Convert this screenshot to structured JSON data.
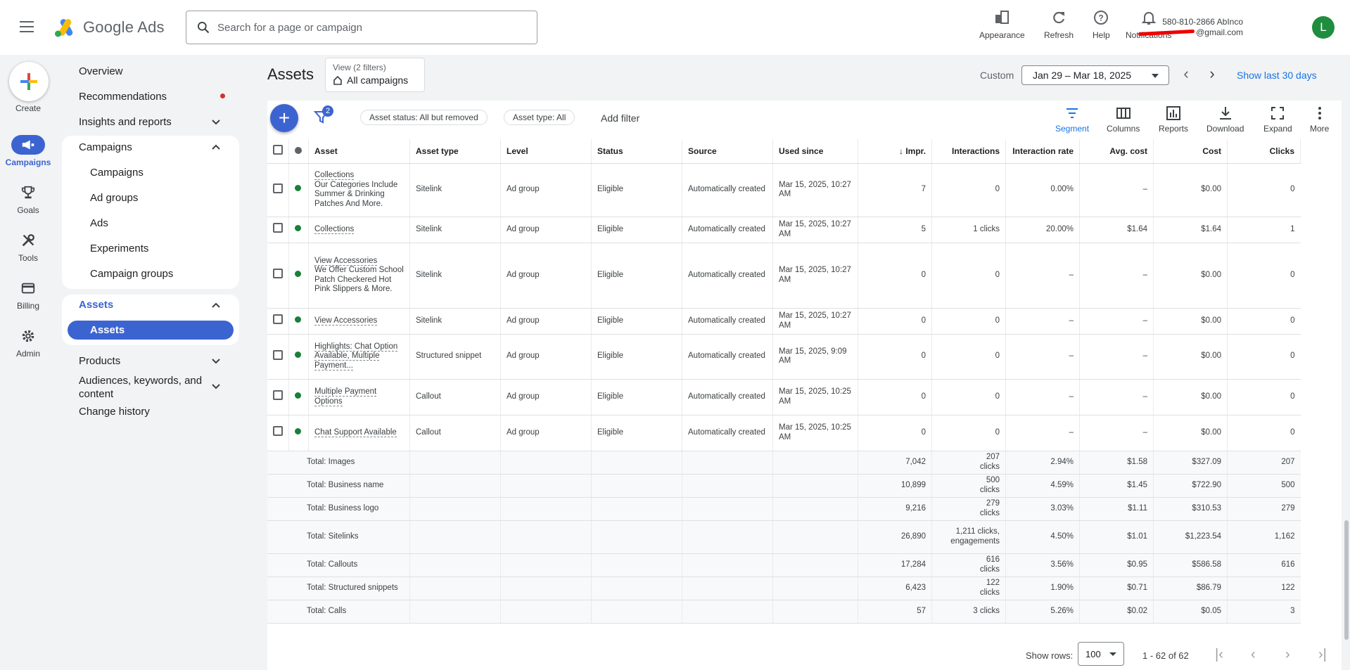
{
  "header": {
    "app_name": "Google Ads",
    "search_placeholder": "Search for a page or campaign",
    "tools": {
      "appearance": "Appearance",
      "refresh": "Refresh",
      "help": "Help",
      "notifications": "Notifications"
    },
    "account": {
      "line1": "580-810-2866 AbInco",
      "email_suffix": "@gmail.com",
      "avatar_letter": "L"
    }
  },
  "rail": {
    "create": "Create",
    "campaigns": "Campaigns",
    "goals": "Goals",
    "tools": "Tools",
    "billing": "Billing",
    "admin": "Admin"
  },
  "nav": {
    "overview": "Overview",
    "recommendations": "Recommendations",
    "insights": "Insights and reports",
    "campaigns_header": "Campaigns",
    "campaigns_sub": [
      "Campaigns",
      "Ad groups",
      "Ads",
      "Experiments",
      "Campaign groups"
    ],
    "assets_header": "Assets",
    "assets_sub": "Assets",
    "products": "Products",
    "audiences": "Audiences, keywords, and content",
    "change_history": "Change history"
  },
  "main": {
    "title": "Assets",
    "view_filters": "View (2 filters)",
    "view_scope": "All campaigns",
    "date_label": "Custom",
    "date_range": "Jan 29 – Mar 18, 2025",
    "show_last": "Show last 30 days",
    "filter_count": "2",
    "chips": [
      "Asset status: All but removed",
      "Asset type: All"
    ],
    "add_filter": "Add filter",
    "toolbar": {
      "segment": "Segment",
      "columns": "Columns",
      "reports": "Reports",
      "download": "Download",
      "expand": "Expand",
      "more": "More"
    }
  },
  "table": {
    "columns": [
      "Asset",
      "Asset type",
      "Level",
      "Status",
      "Source",
      "Used since",
      "Impr.",
      "Interactions",
      "Interaction rate",
      "Avg. cost",
      "Cost",
      "Clicks"
    ],
    "rows": [
      {
        "asset_title": "Collections",
        "asset_desc": "Our Categories Include Summer & Drinking Patches And More.",
        "type": "Sitelink",
        "level": "Ad group",
        "status": "Eligible",
        "source": "Automatically created",
        "used": "Mar 15, 2025, 10:27 AM",
        "impr": "7",
        "inter": "0",
        "rate": "0.00%",
        "avg": "–",
        "cost": "$0.00",
        "clicks": "0"
      },
      {
        "asset_title": "Collections",
        "asset_desc": "",
        "type": "Sitelink",
        "level": "Ad group",
        "status": "Eligible",
        "source": "Automatically created",
        "used": "Mar 15, 2025, 10:27 AM",
        "impr": "5",
        "inter": "1 clicks",
        "rate": "20.00%",
        "avg": "$1.64",
        "cost": "$1.64",
        "clicks": "1"
      },
      {
        "asset_title": "View Accessories",
        "asset_desc": "We Offer Custom School Patch Checkered Hot Pink Slippers & More.",
        "type": "Sitelink",
        "level": "Ad group",
        "status": "Eligible",
        "source": "Automatically created",
        "used": "Mar 15, 2025, 10:27 AM",
        "impr": "0",
        "inter": "0",
        "rate": "–",
        "avg": "–",
        "cost": "$0.00",
        "clicks": "0"
      },
      {
        "asset_title": "View Accessories",
        "asset_desc": "",
        "type": "Sitelink",
        "level": "Ad group",
        "status": "Eligible",
        "source": "Automatically created",
        "used": "Mar 15, 2025, 10:27 AM",
        "impr": "0",
        "inter": "0",
        "rate": "–",
        "avg": "–",
        "cost": "$0.00",
        "clicks": "0"
      },
      {
        "asset_title": "Highlights: Chat Option Available, Multiple Payment...",
        "asset_desc": "",
        "type": "Structured snippet",
        "level": "Ad group",
        "status": "Eligible",
        "source": "Automatically created",
        "used": "Mar 15, 2025, 9:09 AM",
        "impr": "0",
        "inter": "0",
        "rate": "–",
        "avg": "–",
        "cost": "$0.00",
        "clicks": "0"
      },
      {
        "asset_title": "Multiple Payment Options",
        "asset_desc": "",
        "type": "Callout",
        "level": "Ad group",
        "status": "Eligible",
        "source": "Automatically created",
        "used": "Mar 15, 2025, 10:25 AM",
        "impr": "0",
        "inter": "0",
        "rate": "–",
        "avg": "–",
        "cost": "$0.00",
        "clicks": "0"
      },
      {
        "asset_title": "Chat Support Available",
        "asset_desc": "",
        "type": "Callout",
        "level": "Ad group",
        "status": "Eligible",
        "source": "Automatically created",
        "used": "Mar 15, 2025, 10:25 AM",
        "impr": "0",
        "inter": "0",
        "rate": "–",
        "avg": "–",
        "cost": "$0.00",
        "clicks": "0"
      }
    ],
    "totals": [
      {
        "label": "Total: Images",
        "impr": "7,042",
        "inter": "207 clicks",
        "rate": "2.94%",
        "avg": "$1.58",
        "cost": "$327.09",
        "clicks": "207"
      },
      {
        "label": "Total: Business name",
        "impr": "10,899",
        "inter": "500 clicks",
        "rate": "4.59%",
        "avg": "$1.45",
        "cost": "$722.90",
        "clicks": "500"
      },
      {
        "label": "Total: Business logo",
        "impr": "9,216",
        "inter": "279 clicks",
        "rate": "3.03%",
        "avg": "$1.11",
        "cost": "$310.53",
        "clicks": "279"
      },
      {
        "label": "Total: Sitelinks",
        "impr": "26,890",
        "inter": "1,211 clicks, engagements",
        "rate": "4.50%",
        "avg": "$1.01",
        "cost": "$1,223.54",
        "clicks": "1,162"
      },
      {
        "label": "Total: Callouts",
        "impr": "17,284",
        "inter": "616 clicks",
        "rate": "3.56%",
        "avg": "$0.95",
        "cost": "$586.58",
        "clicks": "616"
      },
      {
        "label": "Total: Structured snippets",
        "impr": "6,423",
        "inter": "122 clicks",
        "rate": "1.90%",
        "avg": "$0.71",
        "cost": "$86.79",
        "clicks": "122"
      },
      {
        "label": "Total: Calls",
        "impr": "57",
        "inter": "3 clicks",
        "rate": "5.26%",
        "avg": "$0.02",
        "cost": "$0.05",
        "clicks": "3"
      }
    ]
  },
  "footer": {
    "show_rows_label": "Show rows:",
    "rows_value": "100",
    "range": "1 - 62 of 62"
  },
  "colors": {
    "accent": "#3c64d1",
    "link": "#1a73e8",
    "eligible": "#188038"
  }
}
